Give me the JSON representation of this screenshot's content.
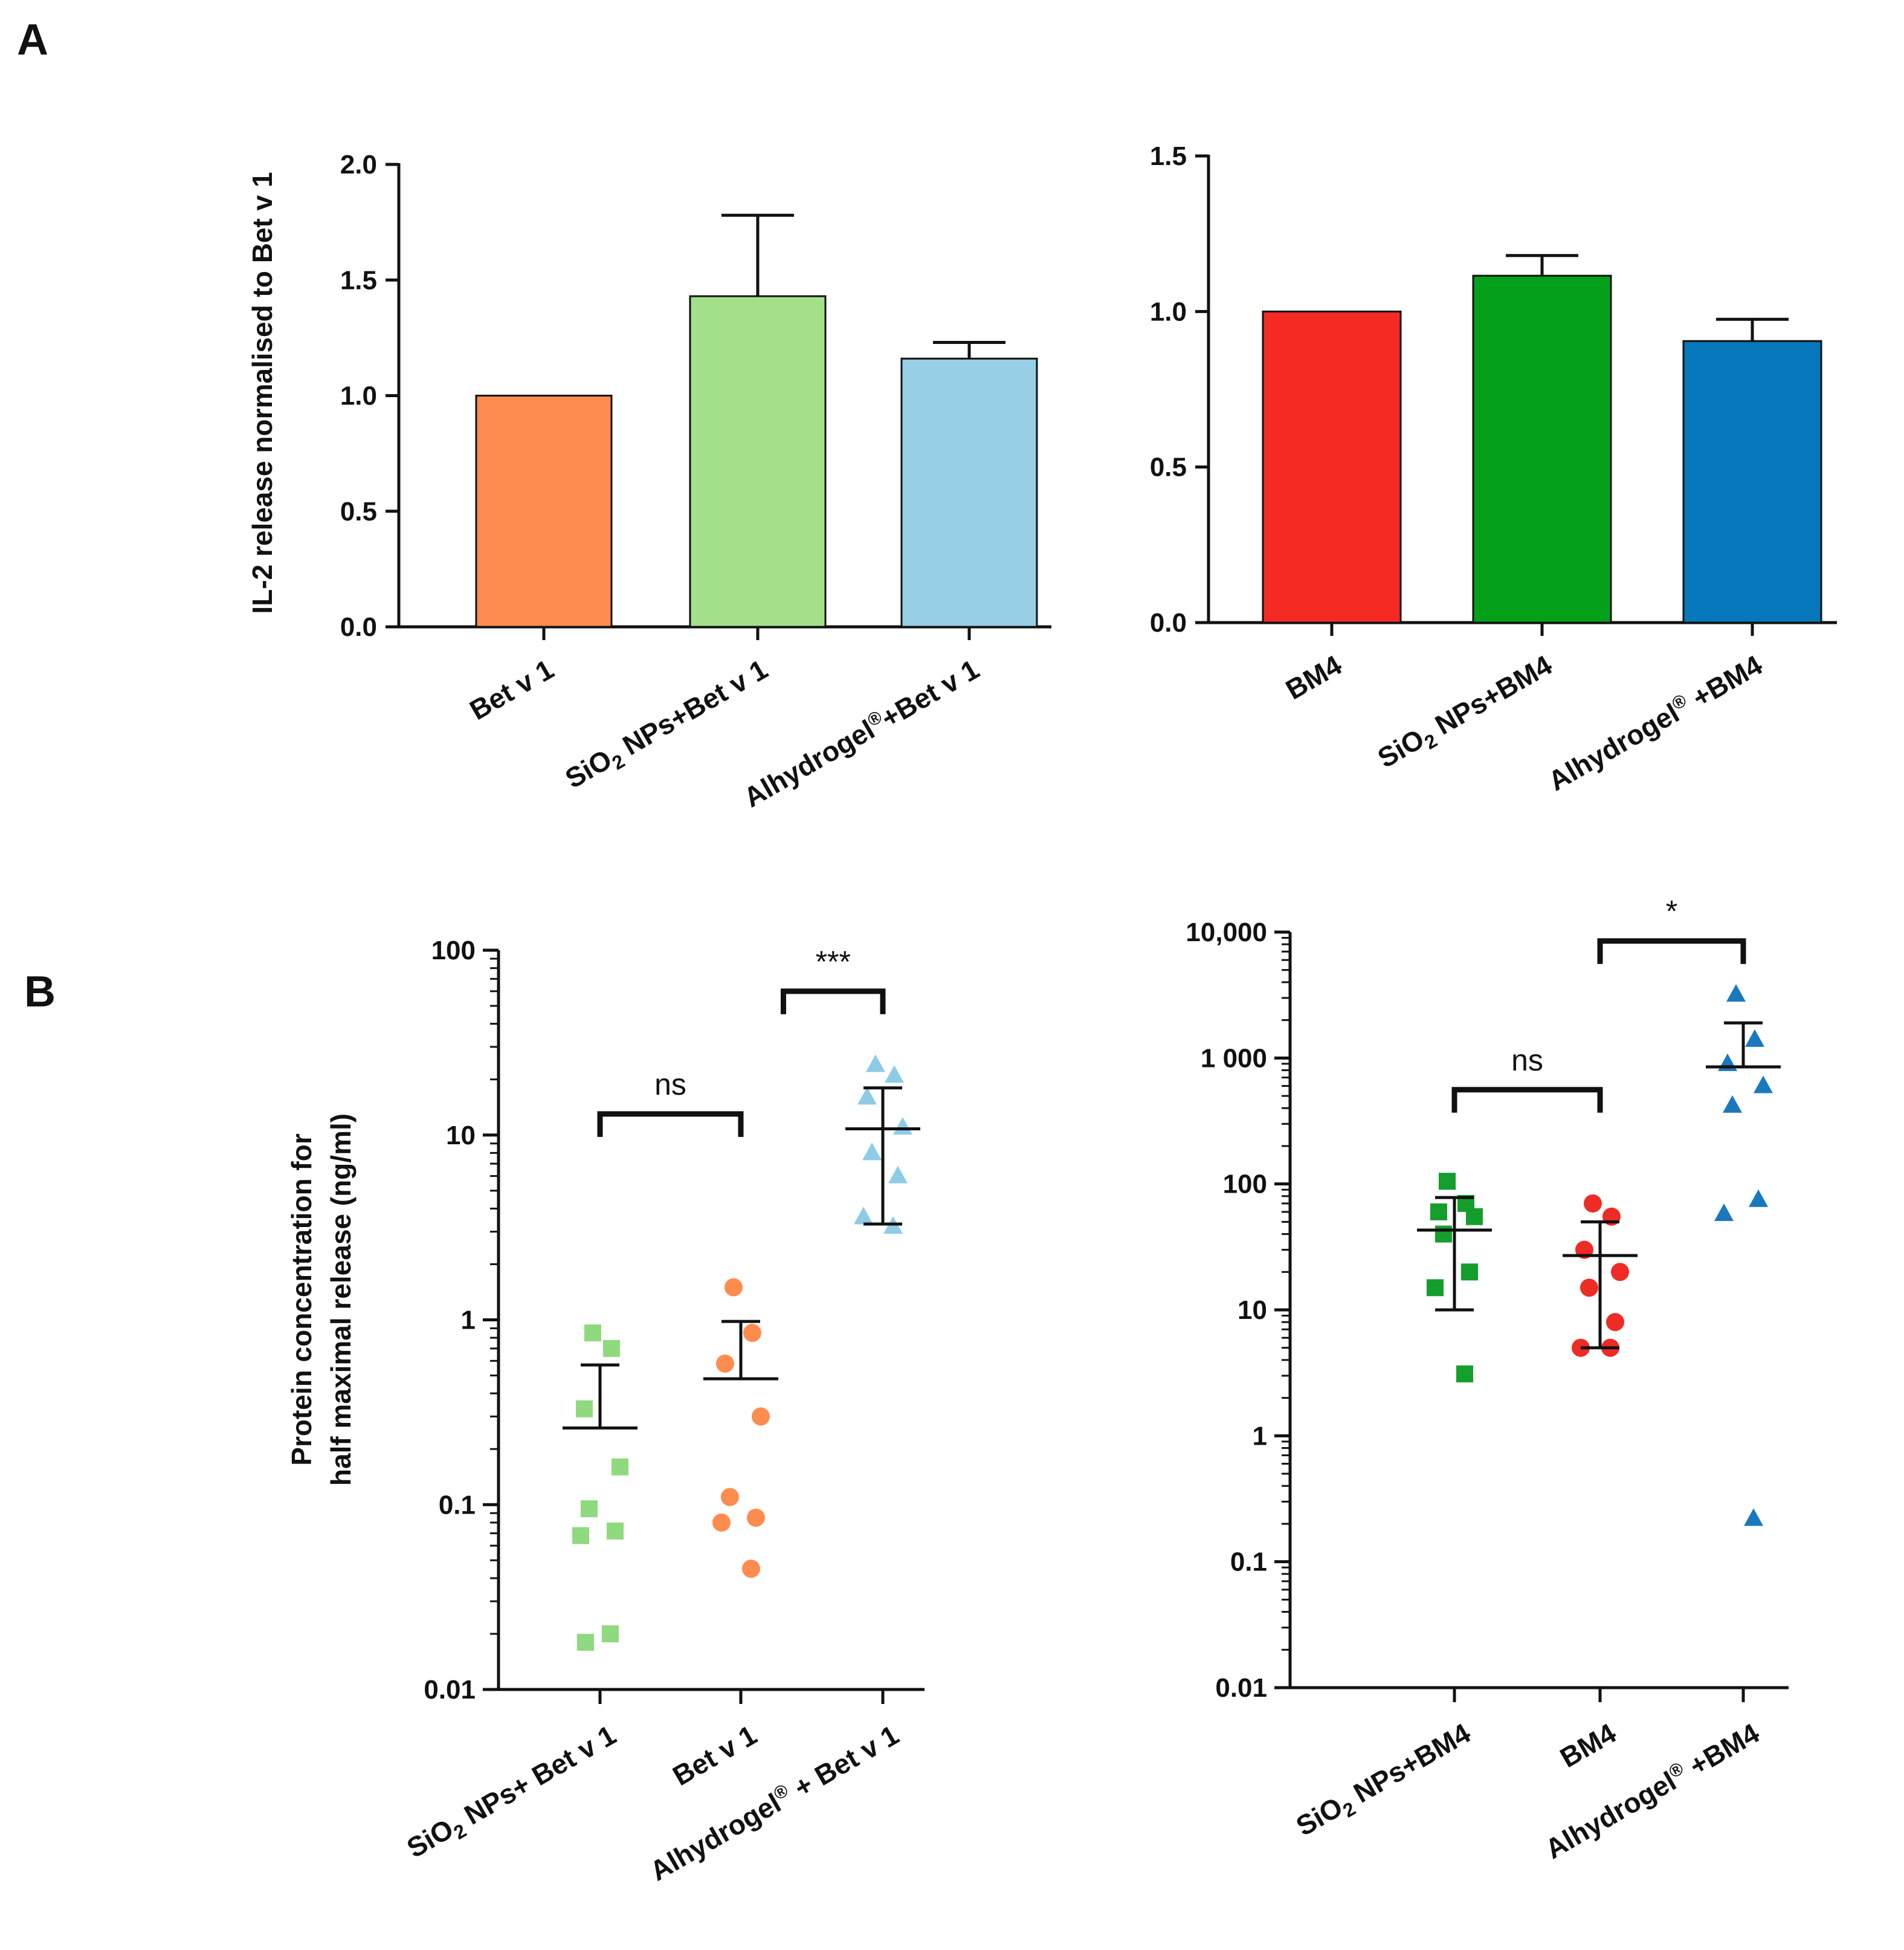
{
  "panel_labels": {
    "a": "A",
    "b": "B"
  },
  "ylabels": {
    "a": "IL-2 release normalised to Bet v 1",
    "b_line1": "Protein concentration for",
    "b_line2": "half maximal release (ng/ml)"
  },
  "chart_data": [
    {
      "id": "A1",
      "type": "bar",
      "title": "",
      "xlabel": "",
      "ylabel": "IL-2 release normalised to Bet v 1",
      "ylim": [
        0,
        2.0
      ],
      "yticks": [
        0.0,
        0.5,
        1.0,
        1.5,
        2.0
      ],
      "ytick_labels": [
        "0.0",
        "0.5",
        "1.0",
        "1.5",
        "2.0"
      ],
      "categories": [
        {
          "pre": "",
          "sub": "",
          "post": "Bet v 1",
          "sup": "",
          "tail": ""
        },
        {
          "pre": "SiO",
          "sub": "2",
          "post": " NPs+Bet v 1",
          "sup": "",
          "tail": ""
        },
        {
          "pre": "Alhydrogel",
          "sub": "",
          "post": "",
          "sup": "®",
          "tail": "+Bet v 1"
        }
      ],
      "values": [
        1.0,
        1.43,
        1.16
      ],
      "errors": [
        0.0,
        0.35,
        0.07
      ],
      "colors": [
        "#FF8C4F",
        "#A3E08A",
        "#96CFE6"
      ]
    },
    {
      "id": "A2",
      "type": "bar",
      "title": "",
      "xlabel": "",
      "ylabel": "",
      "ylim": [
        0,
        1.5
      ],
      "yticks": [
        0.0,
        0.5,
        1.0,
        1.5
      ],
      "ytick_labels": [
        "0.0",
        "0.5",
        "1.0",
        "1.5"
      ],
      "categories": [
        {
          "pre": "",
          "sub": "",
          "post": "BM4",
          "sup": "",
          "tail": ""
        },
        {
          "pre": "SiO",
          "sub": "2",
          "post": " NPs+BM4",
          "sup": "",
          "tail": ""
        },
        {
          "pre": "Alhydrogel",
          "sub": "",
          "post": "",
          "sup": "®",
          "tail": " +BM4"
        }
      ],
      "values": [
        1.0,
        1.115,
        0.905
      ],
      "errors": [
        0.0,
        0.065,
        0.07
      ],
      "colors": [
        "#F42A23",
        "#04A019",
        "#0577BA"
      ]
    },
    {
      "id": "B1",
      "type": "scatter",
      "scale": "log",
      "title": "",
      "xlabel": "",
      "ylabel": "Protein concentration for half maximal release (ng/ml)",
      "ylim": [
        0.01,
        100
      ],
      "yticks": [
        0.01,
        0.1,
        1,
        10,
        100
      ],
      "ytick_labels": [
        "0.01",
        "0.1",
        "1",
        "10",
        "100"
      ],
      "categories": [
        {
          "pre": "SiO",
          "sub": "2",
          "post": " NPs+ Bet v 1",
          "sup": "",
          "tail": ""
        },
        {
          "pre": "",
          "sub": "",
          "post": "Bet v 1",
          "sup": "",
          "tail": ""
        },
        {
          "pre": "Alhydrogel",
          "sub": "",
          "post": "",
          "sup": "®",
          "tail": " + Bet v 1"
        }
      ],
      "series": [
        {
          "name": "SiO2 NPs+ Bet v 1",
          "marker": "square",
          "color": "#8FD97E",
          "points": [
            0.85,
            0.7,
            0.33,
            0.16,
            0.095,
            0.072,
            0.068,
            0.02,
            0.018
          ],
          "mean": 0.26,
          "err_low": 0.0,
          "err_high": 0.57
        },
        {
          "name": "Bet v 1",
          "marker": "circle",
          "color": "#FF8C4F",
          "points": [
            1.5,
            0.85,
            0.58,
            0.3,
            0.11,
            0.085,
            0.08,
            0.045
          ],
          "mean": 0.48,
          "err_low": 0.0,
          "err_high": 0.98
        },
        {
          "name": "Alhydrogel + Bet v 1",
          "marker": "triangle",
          "color": "#8ECCE6",
          "points": [
            24,
            21,
            16,
            11,
            8,
            6,
            3.6,
            3.2
          ],
          "mean": 10.8,
          "err_low": 3.3,
          "err_high": 18
        }
      ],
      "comparisons": [
        {
          "from": 0,
          "to": 1,
          "label": "ns",
          "y": 13
        },
        {
          "from": 1.3,
          "to": 2,
          "label": "***",
          "y": 60
        }
      ]
    },
    {
      "id": "B2",
      "type": "scatter",
      "scale": "log",
      "title": "",
      "xlabel": "",
      "ylabel": "",
      "ylim": [
        0.01,
        10000
      ],
      "yticks": [
        0.01,
        0.1,
        1,
        10,
        100,
        1000,
        10000
      ],
      "ytick_labels": [
        "0.01",
        "0.1",
        "1",
        "10",
        "100",
        "1 000",
        "10,000"
      ],
      "categories": [
        {
          "pre": "SiO",
          "sub": "2",
          "post": " NPs+BM4",
          "sup": "",
          "tail": ""
        },
        {
          "pre": "",
          "sub": "",
          "post": "BM4",
          "sup": "",
          "tail": ""
        },
        {
          "pre": "Alhydrogel",
          "sub": "",
          "post": "",
          "sup": "®",
          "tail": " +BM4"
        }
      ],
      "series": [
        {
          "name": "SiO2 NPs+BM4",
          "marker": "square",
          "color": "#149E2C",
          "points": [
            105,
            70,
            60,
            55,
            40,
            20,
            15,
            3.1
          ],
          "mean": 43,
          "err_low": 10,
          "err_high": 78
        },
        {
          "name": "BM4",
          "marker": "circle",
          "color": "#EE2B24",
          "points": [
            70,
            55,
            30,
            20,
            15,
            8,
            5,
            5
          ],
          "mean": 27,
          "err_low": 5,
          "err_high": 50
        },
        {
          "name": "Alhydrogel +BM4",
          "marker": "triangle",
          "color": "#1A79BE",
          "points": [
            3200,
            1400,
            900,
            600,
            420,
            75,
            58,
            0.22
          ],
          "mean": 850,
          "err_low": 0,
          "err_high": 1900
        }
      ],
      "comparisons": [
        {
          "from": 0,
          "to": 1,
          "label": "ns",
          "y": 560
        },
        {
          "from": 1,
          "to": 2,
          "label": "*",
          "y": 8500
        }
      ]
    }
  ]
}
